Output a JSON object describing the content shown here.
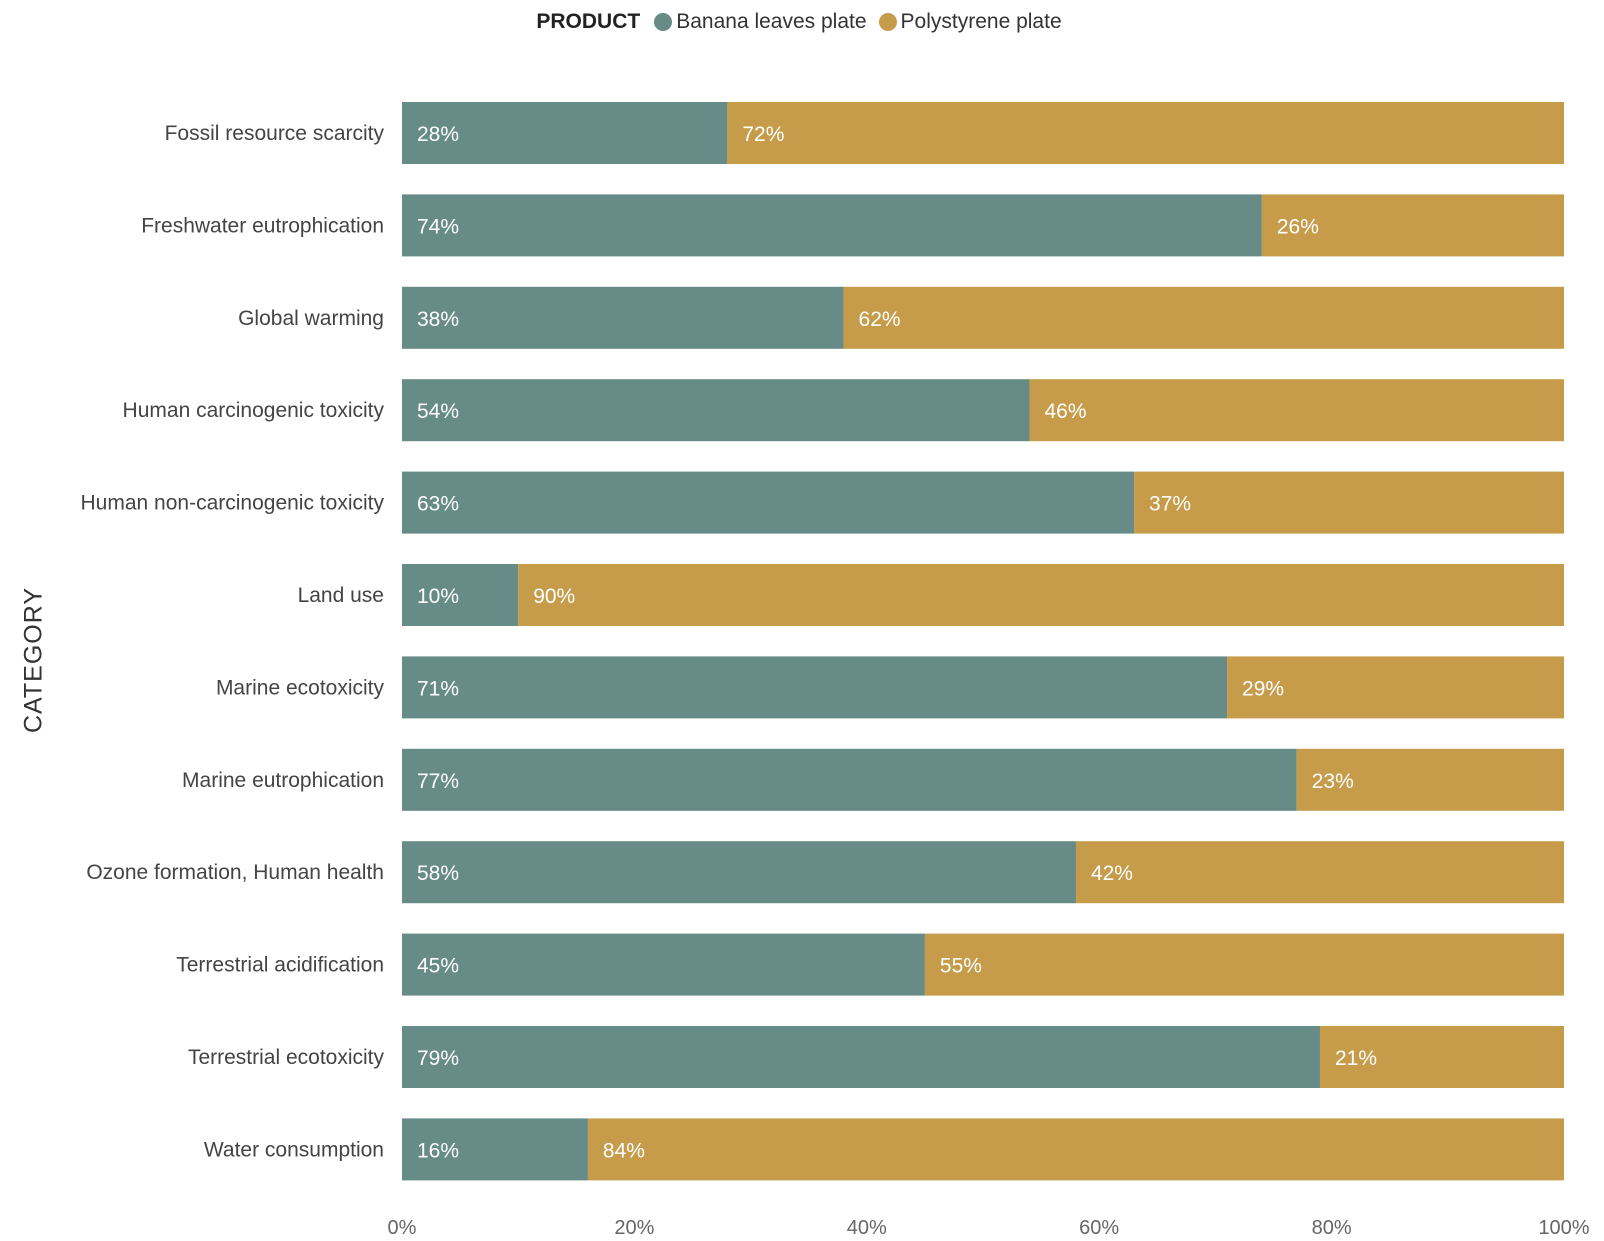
{
  "legend": {
    "title": "PRODUCT",
    "items": [
      {
        "label": "Banana leaves plate",
        "color": "#678b87"
      },
      {
        "label": "Polystyrene plate",
        "color": "#c69c4b"
      }
    ]
  },
  "chart_data": {
    "type": "bar",
    "orientation": "horizontal",
    "stacked": "100%",
    "ylabel": "CATEGORY",
    "xlabel": "",
    "xlim": [
      0,
      100
    ],
    "x_ticks": [
      "0%",
      "20%",
      "40%",
      "60%",
      "80%",
      "100%"
    ],
    "legend_position": "top",
    "grid": false,
    "categories": [
      "Fossil resource scarcity",
      "Freshwater eutrophication",
      "Global warming",
      "Human carcinogenic toxicity",
      "Human non-carcinogenic toxicity",
      "Land use",
      "Marine ecotoxicity",
      "Marine eutrophication",
      "Ozone formation, Human health",
      "Terrestrial acidification",
      "Terrestrial ecotoxicity",
      "Water consumption"
    ],
    "series": [
      {
        "name": "Banana leaves plate",
        "color": "#678b87",
        "values": [
          28,
          74,
          38,
          54,
          63,
          10,
          71,
          77,
          58,
          45,
          79,
          16
        ],
        "labels": [
          "28%",
          "74%",
          "38%",
          "54%",
          "63%",
          "10%",
          "71%",
          "77%",
          "58%",
          "45%",
          "79%",
          "16%"
        ]
      },
      {
        "name": "Polystyrene plate",
        "color": "#c69c4b",
        "values": [
          72,
          26,
          62,
          46,
          37,
          90,
          29,
          23,
          42,
          55,
          21,
          84
        ],
        "labels": [
          "72%",
          "26%",
          "62%",
          "46%",
          "37%",
          "90%",
          "29%",
          "23%",
          "42%",
          "55%",
          "21%",
          "84%"
        ]
      }
    ]
  }
}
